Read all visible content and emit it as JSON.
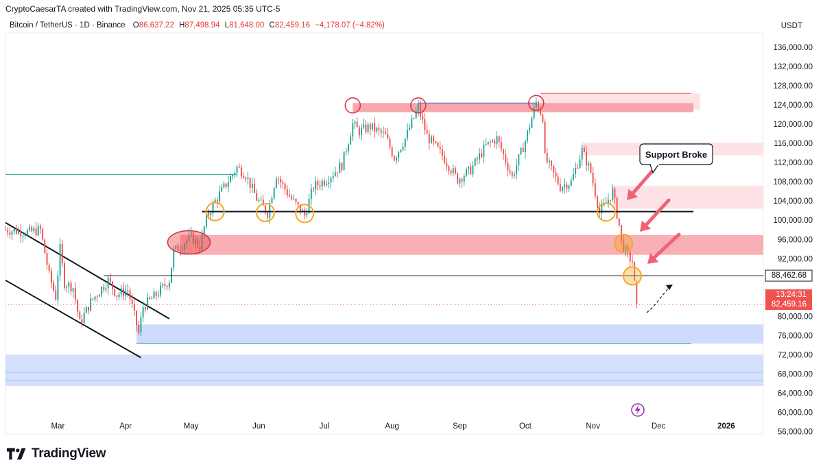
{
  "credit": "CryptoCaesarTA created with TradingView.com, Nov 21, 2025 05:35 UTC-5",
  "legend": {
    "symbol": "Bitcoin / TetherUS · 1D · Binance",
    "o_label": "O",
    "o": "86,637.22",
    "h_label": "H",
    "h": "87,498.94",
    "l_label": "L",
    "l": "81,648.00",
    "c_label": "C",
    "c": "82,459.16",
    "change": "−4,178.07 (−4.82%)"
  },
  "currency": "USDT",
  "brand": "TradingView",
  "colors": {
    "up": "#26a69a",
    "down": "#ef5350",
    "red_zone": "#f7a1a8",
    "red_zone_light": "#fde3e5",
    "blue_zone": "#c5d5fb",
    "orange": "#f5a623",
    "crimson": "#d32f46",
    "price_tag": "#ef5350"
  },
  "chart_data": {
    "type": "candlestick",
    "symbol": "BTCUSDT",
    "interval": "1D",
    "y_ticks": [
      "136,000.00",
      "132,000.00",
      "128,000.00",
      "124,000.00",
      "120,000.00",
      "116,000.00",
      "112,000.00",
      "108,000.00",
      "104,000.00",
      "100,000.00",
      "96,000.00",
      "92,000.00",
      "80,000.00",
      "76,000.00",
      "72,000.00",
      "68,000.00",
      "64,000.00",
      "60,000.00",
      "56,000.00"
    ],
    "y_tick_values": [
      136000,
      132000,
      128000,
      124000,
      120000,
      116000,
      112000,
      108000,
      104000,
      100000,
      96000,
      92000,
      80000,
      76000,
      72000,
      68000,
      64000,
      60000,
      56000
    ],
    "ylim": [
      55500,
      139000
    ],
    "x_ticks": [
      "Mar",
      "Apr",
      "May",
      "Jun",
      "Jul",
      "Aug",
      "Sep",
      "Oct",
      "Nov",
      "Dec",
      "2026"
    ],
    "x_tick_dates": [
      "2025-03-01",
      "2025-04-01",
      "2025-05-01",
      "2025-06-01",
      "2025-07-01",
      "2025-08-01",
      "2025-09-01",
      "2025-10-01",
      "2025-11-01",
      "2025-12-01",
      "2026-01-01"
    ],
    "x_range": [
      "2025-02-05",
      "2026-01-18"
    ],
    "anchors": [
      [
        "2025-02-05",
        98000
      ],
      [
        "2025-02-16",
        97500
      ],
      [
        "2025-02-21",
        98000
      ],
      [
        "2025-02-25",
        88500
      ],
      [
        "2025-02-28",
        84000
      ],
      [
        "2025-03-02",
        94000
      ],
      [
        "2025-03-04",
        87000
      ],
      [
        "2025-03-08",
        86000
      ],
      [
        "2025-03-11",
        78500
      ],
      [
        "2025-03-16",
        83000
      ],
      [
        "2025-03-24",
        87500
      ],
      [
        "2025-03-28",
        84500
      ],
      [
        "2025-04-02",
        85500
      ],
      [
        "2025-04-07",
        76500
      ],
      [
        "2025-04-09",
        82000
      ],
      [
        "2025-04-15",
        84500
      ],
      [
        "2025-04-21",
        87500
      ],
      [
        "2025-04-23",
        93500
      ],
      [
        "2025-05-01",
        96500
      ],
      [
        "2025-05-05",
        94500
      ],
      [
        "2025-05-08",
        100500
      ],
      [
        "2025-05-12",
        104000
      ],
      [
        "2025-05-22",
        111000
      ],
      [
        "2025-05-26",
        109500
      ],
      [
        "2025-05-31",
        104500
      ],
      [
        "2025-06-05",
        101500
      ],
      [
        "2025-06-09",
        109500
      ],
      [
        "2025-06-15",
        105000
      ],
      [
        "2025-06-22",
        101000
      ],
      [
        "2025-06-26",
        107000
      ],
      [
        "2025-07-02",
        108500
      ],
      [
        "2025-07-09",
        111500
      ],
      [
        "2025-07-14",
        120000
      ],
      [
        "2025-07-17",
        118500
      ],
      [
        "2025-07-22",
        119500
      ],
      [
        "2025-07-29",
        117500
      ],
      [
        "2025-08-02",
        113000
      ],
      [
        "2025-08-07",
        117000
      ],
      [
        "2025-08-13",
        123500
      ],
      [
        "2025-08-17",
        117500
      ],
      [
        "2025-08-24",
        113500
      ],
      [
        "2025-08-31",
        108500
      ],
      [
        "2025-09-06",
        110500
      ],
      [
        "2025-09-13",
        115500
      ],
      [
        "2025-09-18",
        117000
      ],
      [
        "2025-09-25",
        109000
      ],
      [
        "2025-10-01",
        116500
      ],
      [
        "2025-10-06",
        124500
      ],
      [
        "2025-10-09",
        121500
      ],
      [
        "2025-10-10",
        113000
      ],
      [
        "2025-10-17",
        107000
      ],
      [
        "2025-10-22",
        108000
      ],
      [
        "2025-10-27",
        114500
      ],
      [
        "2025-10-31",
        110000
      ],
      [
        "2025-11-04",
        101500
      ],
      [
        "2025-11-07",
        103500
      ],
      [
        "2025-11-10",
        106000
      ],
      [
        "2025-11-13",
        99000
      ],
      [
        "2025-11-14",
        95500
      ],
      [
        "2025-11-17",
        92500
      ],
      [
        "2025-11-18",
        92000
      ],
      [
        "2025-11-19",
        91500
      ],
      [
        "2025-11-20",
        86637.22
      ],
      [
        "2025-11-21",
        82459.16
      ]
    ],
    "last_candle": {
      "open": 86637.22,
      "high": 87498.94,
      "low": 81648.0,
      "close": 82459.16
    },
    "levels": {
      "support_line": 101800,
      "resistance_price": 88462.68,
      "current_price": 82459.16,
      "top_line": 124400,
      "teal_line": 109500
    },
    "zones": {
      "red_top": [
        122500,
        124400
      ],
      "red_top_light": [
        123000,
        126400
      ],
      "red_116": [
        113500,
        116200
      ],
      "red_106": [
        102400,
        107200
      ],
      "red_94": [
        92800,
        96900
      ],
      "blue_78": [
        74300,
        78300
      ],
      "blue_low": [
        65500,
        72000
      ]
    },
    "price_tags": {
      "resistance": "88,462.68",
      "countdown": "13:24:31",
      "current": "82,459.16"
    },
    "annotation": "Support Broke"
  }
}
